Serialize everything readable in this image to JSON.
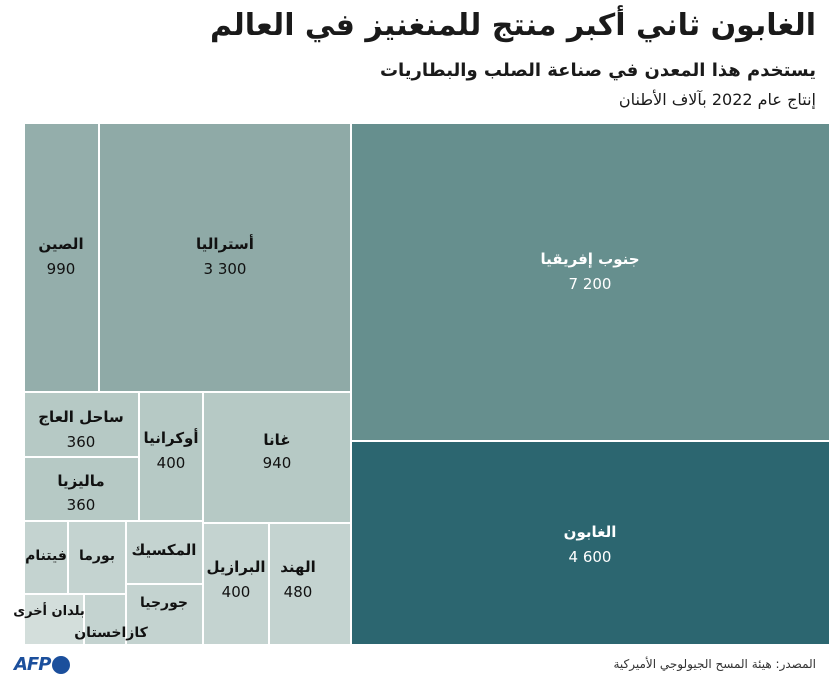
{
  "header": {
    "title": "الغابون ثاني أكبر منتج للمنغنيز في العالم",
    "subtitle": "يستخدم هذا المعدن في صناعة الصلب والبطاريات",
    "unit": "إنتاج عام 2022 بآلاف الأطنان"
  },
  "footer": {
    "source": "المصدر: هيئة المسح الجيولوجي الأميركية",
    "logo_text": "AFP"
  },
  "colors": {
    "south_africa": "#668f8e",
    "gabon": "#2c6670",
    "australia": "#8faaa7",
    "china": "#94aeab",
    "light": "#b6c9c5",
    "lighter": "#c4d3d0",
    "lightest": "#d3dedb",
    "logo": "#1b4f9c"
  },
  "chart_data": {
    "type": "treemap",
    "title": "الغابون ثاني أكبر منتج للمنغنيز في العالم",
    "unit": "إنتاج عام 2022 بآلاف الأطنان",
    "items": [
      {
        "name": "جنوب إفريقيا",
        "value": 7200,
        "label": "7 200"
      },
      {
        "name": "الغابون",
        "value": 4600,
        "label": "4 600"
      },
      {
        "name": "أستراليا",
        "value": 3300,
        "label": "3 300"
      },
      {
        "name": "الصين",
        "value": 990,
        "label": "990"
      },
      {
        "name": "غانا",
        "value": 940,
        "label": "940"
      },
      {
        "name": "الهند",
        "value": 480,
        "label": "480"
      },
      {
        "name": "أوكرانيا",
        "value": 400,
        "label": "400"
      },
      {
        "name": "البرازيل",
        "value": 400,
        "label": "400"
      },
      {
        "name": "ساحل العاج",
        "value": 360,
        "label": "360"
      },
      {
        "name": "ماليزيا",
        "value": 360,
        "label": "360"
      },
      {
        "name": "المكسيك",
        "value": null,
        "label": ""
      },
      {
        "name": "جورجيا",
        "value": null,
        "label": ""
      },
      {
        "name": "بورما",
        "value": null,
        "label": ""
      },
      {
        "name": "فيتنام",
        "value": null,
        "label": ""
      },
      {
        "name": "كازاخستان",
        "value": null,
        "label": ""
      },
      {
        "name": "بلدان أخرى",
        "value": null,
        "label": ""
      }
    ]
  }
}
